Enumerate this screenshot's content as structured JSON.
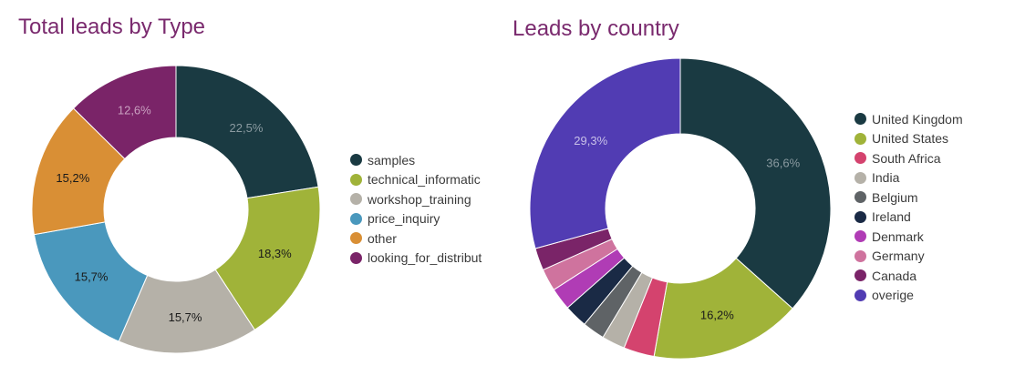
{
  "chart_data": [
    {
      "type": "pie",
      "title": "Total leads by Type",
      "legend": "right",
      "categories": [
        "samples",
        "technical_information",
        "workshop_training",
        "price_inquiry",
        "other",
        "looking_for_distributor"
      ],
      "legend_labels": [
        "samples",
        "technical_informatic",
        "workshop_training",
        "price_inquiry",
        "other",
        "looking_for_distribut"
      ],
      "values": [
        22.5,
        18.3,
        15.7,
        15.7,
        15.2,
        12.6
      ],
      "value_labels": [
        "22,5%",
        "18,3%",
        "15,7%",
        "15,7%",
        "15,2%",
        "12,6%"
      ],
      "colors": [
        "#1a3a42",
        "#a0b339",
        "#b5b1a8",
        "#4a98bd",
        "#d98f35",
        "#7a2468"
      ],
      "label_colors": [
        "#8a9aa0",
        "#1a1a1a",
        "#1a1a1a",
        "#1a1a1a",
        "#1a1a1a",
        "#c9a0c0"
      ]
    },
    {
      "type": "pie",
      "title": "Leads by country",
      "legend": "right",
      "categories": [
        "United Kingdom",
        "United States",
        "South Africa",
        "India",
        "Belgium",
        "Ireland",
        "Denmark",
        "Germany",
        "Canada",
        "overige"
      ],
      "legend_labels": [
        "United Kingdom",
        "United States",
        "South Africa",
        "India",
        "Belgium",
        "Ireland",
        "Denmark",
        "Germany",
        "Canada",
        "overige"
      ],
      "values": [
        36.6,
        16.2,
        3.3,
        2.5,
        2.4,
        2.5,
        2.4,
        2.4,
        2.4,
        29.3
      ],
      "value_labels": [
        "36,6%",
        "16,2%",
        "",
        "",
        "",
        "",
        "",
        "",
        "",
        "29,3%"
      ],
      "colors": [
        "#1a3a42",
        "#a0b339",
        "#d4436e",
        "#b5b1a8",
        "#5f6366",
        "#1a2a45",
        "#b03cb5",
        "#cf739e",
        "#7a2468",
        "#513cb3"
      ],
      "label_colors": [
        "#8a9aa0",
        "#1a1a1a",
        "#ffffff",
        "#ffffff",
        "#ffffff",
        "#ffffff",
        "#ffffff",
        "#ffffff",
        "#ffffff",
        "#c8c0e8"
      ]
    }
  ]
}
